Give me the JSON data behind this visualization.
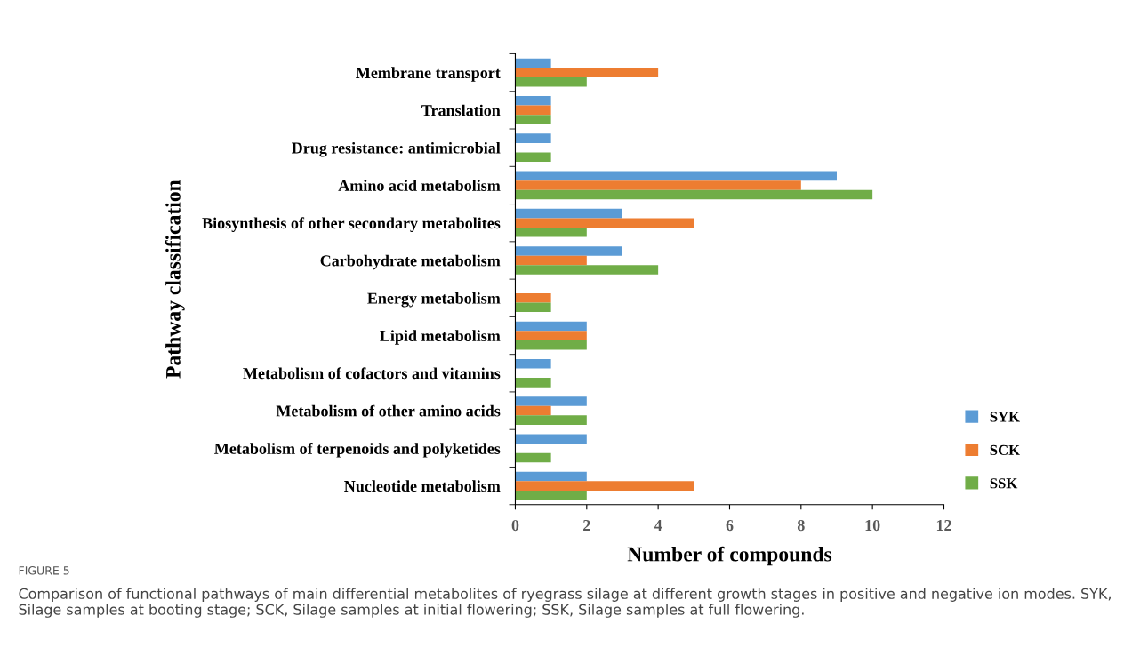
{
  "chart_data": {
    "type": "bar",
    "orientation": "horizontal",
    "xlabel": "Number of compounds",
    "ylabel": "Pathway classification",
    "categories": [
      "Membrane transport",
      "Translation",
      "Drug resistance: antimicrobial",
      "Amino acid metabolism",
      "Biosynthesis of other secondary metabolites",
      "Carbohydrate metabolism",
      "Energy metabolism",
      "Lipid metabolism",
      "Metabolism of cofactors and vitamins",
      "Metabolism of other amino acids",
      "Metabolism of terpenoids and polyketides",
      "Nucleotide metabolism"
    ],
    "series": [
      {
        "name": "SYK",
        "color": "#5b9bd5",
        "values": [
          1,
          1,
          1,
          9,
          3,
          3,
          0,
          2,
          1,
          2,
          2,
          2
        ]
      },
      {
        "name": "SCK",
        "color": "#ed7d31",
        "values": [
          4,
          1,
          0,
          8,
          5,
          2,
          1,
          2,
          0,
          1,
          0,
          5
        ]
      },
      {
        "name": "SSK",
        "color": "#70ad47",
        "values": [
          2,
          1,
          1,
          10,
          2,
          4,
          1,
          2,
          1,
          2,
          1,
          2
        ]
      }
    ],
    "xlim": [
      0,
      12
    ],
    "xticks": [
      0,
      2,
      4,
      6,
      8,
      10,
      12
    ],
    "grid": false,
    "legend": "bottom right",
    "annotations": [
      "FIGURE 5",
      "Comparison of functional pathways of main differential metabolites of ryegrass silage at different growth stages in positive and negative ion modes. SYK, Silage samples at booting stage; SCK, Silage samples at initial flowering; SSK, Silage samples at full flowering."
    ]
  }
}
